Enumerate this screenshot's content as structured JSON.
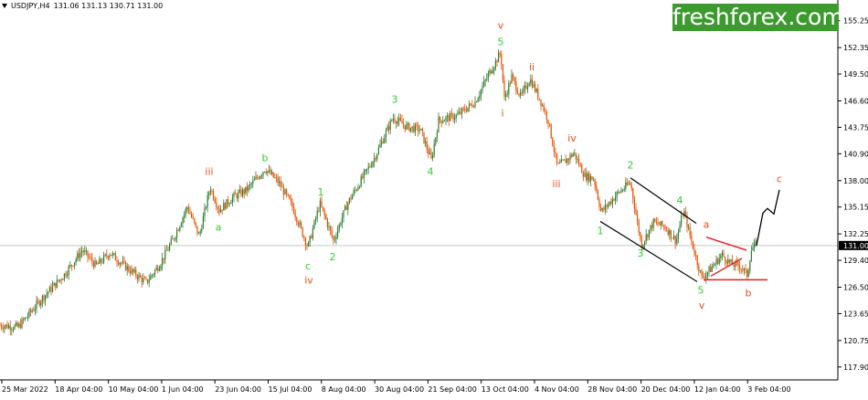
{
  "header": {
    "symbol": "USDJPY,H4",
    "ohlc": "131.06 131.13 130.71 131.00"
  },
  "brand": {
    "logo_text": "freshforex.com",
    "color": "#3c9a2e"
  },
  "colors": {
    "up_candle": "#2e7d32",
    "down_candle": "#e65100",
    "green_label": "#33cc33",
    "red_label": "#e8501a",
    "price_line": "#c8c8c8",
    "channel": "#000000",
    "triangle": "#e02020"
  },
  "chart_data": {
    "type": "candlestick",
    "current_price": "131.00",
    "ylim": [
      116.5,
      156.5
    ],
    "y_ticks": [
      "155.25",
      "152.35",
      "149.50",
      "146.60",
      "143.75",
      "140.90",
      "138.00",
      "135.15",
      "132.25",
      "129.40",
      "126.50",
      "123.65",
      "120.75",
      "117.90"
    ],
    "x_ticks": [
      "25 Mar 2022",
      "18 Apr 04:00",
      "10 May 04:00",
      "1 Jun 04:00",
      "23 Jun 04:00",
      "15 Jul 04:00",
      "8 Aug 04:00",
      "30 Aug 04:00",
      "21 Sep 04:00",
      "13 Oct 04:00",
      "4 Nov 04:00",
      "28 Nov 04:00",
      "20 Dec 04:00",
      "12 Jan 04:00",
      "3 Feb 04:00"
    ],
    "path_points": [
      [
        0,
        122.4
      ],
      [
        20,
        122.2
      ],
      [
        45,
        125.2
      ],
      [
        70,
        127.8
      ],
      [
        90,
        130.5
      ],
      [
        105,
        128.8
      ],
      [
        120,
        130.2
      ],
      [
        140,
        128.5
      ],
      [
        160,
        127.0
      ],
      [
        175,
        129.0
      ],
      [
        190,
        131.8
      ],
      [
        205,
        135.2
      ],
      [
        218,
        132.0
      ],
      [
        230,
        137.3
      ],
      [
        240,
        134.8
      ],
      [
        255,
        136.2
      ],
      [
        270,
        137.0
      ],
      [
        290,
        139.3
      ],
      [
        305,
        137.8
      ],
      [
        320,
        135.2
      ],
      [
        337,
        130.8
      ],
      [
        350,
        135.5
      ],
      [
        355,
        134.3
      ],
      [
        365,
        131.5
      ],
      [
        380,
        135.5
      ],
      [
        395,
        138.0
      ],
      [
        410,
        140.5
      ],
      [
        430,
        144.8
      ],
      [
        445,
        143.8
      ],
      [
        460,
        143.5
      ],
      [
        472,
        140.2
      ],
      [
        480,
        144.5
      ],
      [
        500,
        145.0
      ],
      [
        520,
        146.5
      ],
      [
        535,
        149.5
      ],
      [
        548,
        151.8
      ],
      [
        552,
        146.8
      ],
      [
        560,
        149.2
      ],
      [
        570,
        147.0
      ],
      [
        580,
        149.0
      ],
      [
        593,
        146.3
      ],
      [
        600,
        144.5
      ],
      [
        610,
        139.5
      ],
      [
        620,
        140.2
      ],
      [
        628,
        141.0
      ],
      [
        640,
        138.5
      ],
      [
        650,
        138.2
      ],
      [
        658,
        134.6
      ],
      [
        675,
        136.5
      ],
      [
        690,
        137.8
      ],
      [
        702,
        131.0
      ],
      [
        715,
        133.5
      ],
      [
        728,
        133.0
      ],
      [
        740,
        131.5
      ],
      [
        748,
        134.8
      ],
      [
        758,
        131.0
      ],
      [
        768,
        127.5
      ],
      [
        778,
        128.5
      ],
      [
        790,
        130.0
      ],
      [
        800,
        129.0
      ],
      [
        810,
        128.8
      ],
      [
        818,
        127.8
      ],
      [
        822,
        130.5
      ],
      [
        828,
        131.2
      ]
    ],
    "forecast_path": [
      [
        828,
        131.0
      ],
      [
        835,
        134.5
      ],
      [
        840,
        135.0
      ],
      [
        847,
        134.4
      ],
      [
        853,
        137.0
      ]
    ],
    "channel_lines": [
      [
        [
          657,
          133.6
        ],
        [
          763,
          127.1
        ]
      ],
      [
        [
          690,
          138.3
        ],
        [
          762,
          133.4
        ]
      ]
    ],
    "triangle_lines": [
      [
        [
          773,
          131.9
        ],
        [
          817,
          130.5
        ]
      ],
      [
        [
          778,
          127.7
        ],
        [
          812,
          129.6
        ]
      ],
      [
        [
          770,
          127.3
        ],
        [
          840,
          127.3
        ]
      ]
    ],
    "wave_labels": [
      {
        "text": "iii",
        "x": 229,
        "price": 139.0,
        "color": "red"
      },
      {
        "text": "a",
        "x": 239,
        "price": 133.0,
        "color": "green"
      },
      {
        "text": "b",
        "x": 290,
        "price": 140.5,
        "color": "green"
      },
      {
        "text": "1",
        "x": 351,
        "price": 136.8,
        "color": "green"
      },
      {
        "text": "c",
        "x": 337,
        "price": 128.8,
        "color": "green"
      },
      {
        "text": "iv",
        "x": 338,
        "price": 127.3,
        "color": "red"
      },
      {
        "text": "2",
        "x": 364,
        "price": 129.8,
        "color": "green"
      },
      {
        "text": "3",
        "x": 432,
        "price": 146.8,
        "color": "green"
      },
      {
        "text": "4",
        "x": 471,
        "price": 139.0,
        "color": "green"
      },
      {
        "text": "v",
        "x": 548,
        "price": 154.8,
        "color": "red"
      },
      {
        "text": "5",
        "x": 548,
        "price": 153.0,
        "color": "green"
      },
      {
        "text": "i",
        "x": 550,
        "price": 145.3,
        "color": "red"
      },
      {
        "text": "ii",
        "x": 582,
        "price": 150.3,
        "color": "red"
      },
      {
        "text": "iv",
        "x": 626,
        "price": 142.6,
        "color": "red"
      },
      {
        "text": "iii",
        "x": 609,
        "price": 137.7,
        "color": "red"
      },
      {
        "text": "2",
        "x": 690,
        "price": 139.7,
        "color": "green"
      },
      {
        "text": "1",
        "x": 657,
        "price": 132.6,
        "color": "green"
      },
      {
        "text": "4",
        "x": 744,
        "price": 135.9,
        "color": "green"
      },
      {
        "text": "3",
        "x": 701,
        "price": 130.2,
        "color": "green"
      },
      {
        "text": "5",
        "x": 767,
        "price": 126.2,
        "color": "green"
      },
      {
        "text": "v",
        "x": 768,
        "price": 124.6,
        "color": "red"
      },
      {
        "text": "a",
        "x": 773,
        "price": 133.3,
        "color": "red"
      },
      {
        "text": "b",
        "x": 819,
        "price": 125.9,
        "color": "red"
      },
      {
        "text": "c",
        "x": 853,
        "price": 138.2,
        "color": "red"
      }
    ]
  }
}
